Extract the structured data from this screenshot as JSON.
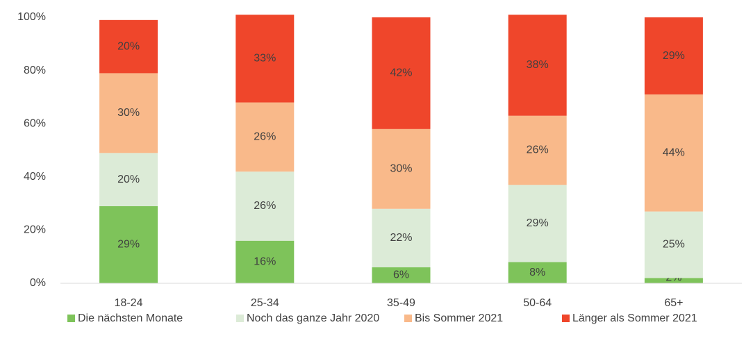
{
  "chart_data": {
    "type": "stacked_bar",
    "categories": [
      "18-24",
      "25-34",
      "35-49",
      "50-64",
      "65+"
    ],
    "series": [
      {
        "name": "Die nächsten Monate",
        "color": "#7ec35a",
        "values": [
          29,
          16,
          6,
          8,
          2
        ],
        "value_labels": [
          "29%",
          "16%",
          "6%",
          "8%",
          "2%"
        ]
      },
      {
        "name": "Noch das ganze Jahr 2020",
        "color": "#dcebd7",
        "values": [
          20,
          26,
          22,
          29,
          25
        ],
        "value_labels": [
          "20%",
          "26%",
          "22%",
          "29%",
          "25%"
        ]
      },
      {
        "name": "Bis Sommer 2021",
        "color": "#f9b98a",
        "values": [
          30,
          26,
          30,
          26,
          44
        ],
        "value_labels": [
          "30%",
          "26%",
          "30%",
          "26%",
          "44%"
        ]
      },
      {
        "name": "Länger als Sommer 2021",
        "color": "#ef462b",
        "values": [
          20,
          33,
          42,
          38,
          29
        ],
        "value_labels": [
          "20%",
          "33%",
          "42%",
          "38%",
          "29%"
        ]
      }
    ],
    "ylim": [
      0,
      100
    ],
    "yticks": [
      {
        "value": 0,
        "label": "0%"
      },
      {
        "value": 20,
        "label": "20%"
      },
      {
        "value": 40,
        "label": "40%"
      },
      {
        "value": 60,
        "label": "60%"
      },
      {
        "value": 80,
        "label": "80%"
      },
      {
        "value": 100,
        "label": "100%"
      }
    ],
    "grid": false,
    "legend": "bottom"
  }
}
